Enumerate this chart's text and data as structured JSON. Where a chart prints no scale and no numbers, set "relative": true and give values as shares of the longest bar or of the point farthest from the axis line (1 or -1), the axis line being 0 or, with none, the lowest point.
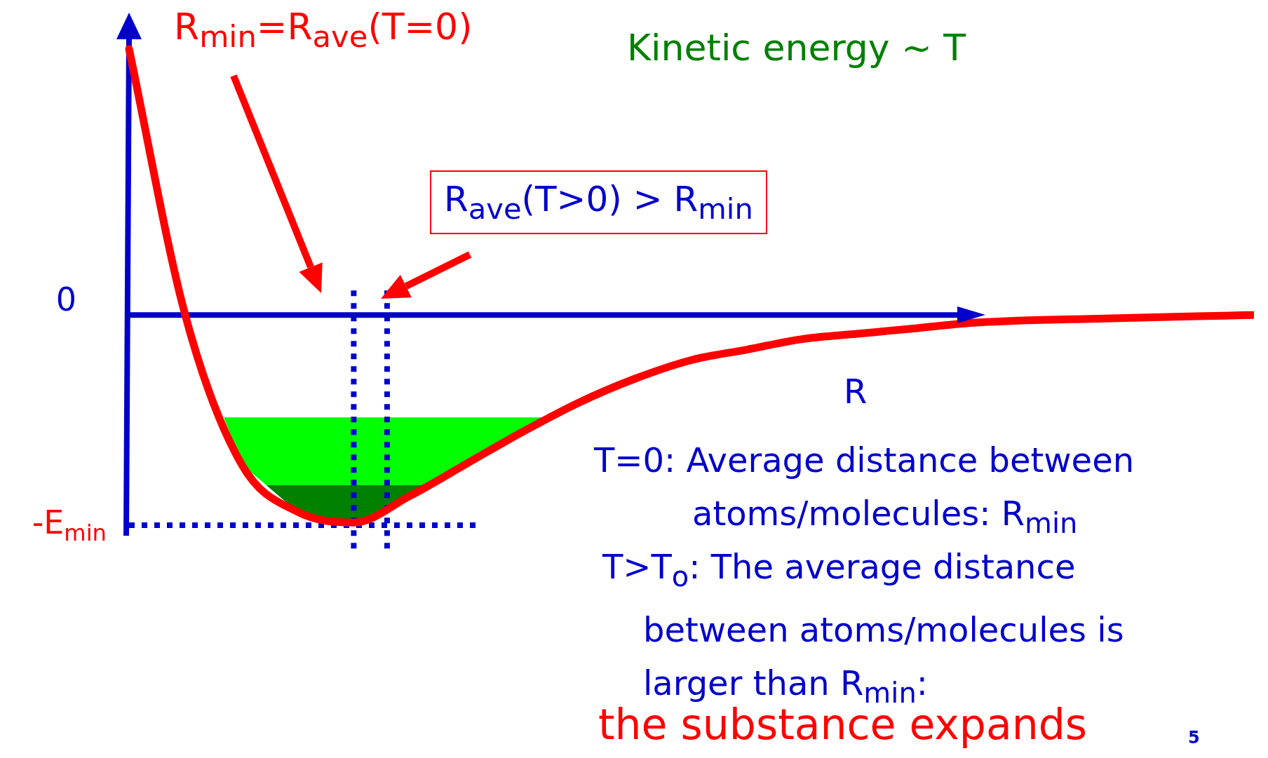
{
  "chart_data": {
    "type": "line",
    "relative": true,
    "xlabel": "R",
    "legend": false,
    "marker": "none",
    "categories": [
      null,
      null,
      null,
      null,
      null,
      null,
      null,
      null,
      null,
      null,
      null,
      null,
      null,
      null,
      null,
      null,
      null,
      null,
      null,
      null,
      null
    ],
    "series": [
      {
        "color": "#ff0000",
        "values": [
          1.0,
          0.0,
          -0.56,
          -0.74,
          -0.78,
          -0.68,
          -0.56,
          -0.44,
          -0.33,
          -0.24,
          -0.17,
          -0.13,
          -0.09,
          -0.07,
          -0.05,
          -0.03,
          -0.02,
          -0.015,
          -0.01,
          -0.005,
          0.0
        ]
      }
    ],
    "ref_lines": [
      {
        "axis": "y",
        "value": 0,
        "label": "0",
        "color": "#0000cc"
      },
      {
        "axis": "y",
        "value": -0.79,
        "label": "-E$_{min}$",
        "color": "#0000cc",
        "line_style": "dotted"
      }
    ],
    "bands": [
      {
        "axis": "y",
        "from": -0.64,
        "to": -0.385,
        "color": "#00ff00"
      },
      {
        "axis": "y",
        "from": -0.79,
        "to": -0.64,
        "color": "#008000"
      }
    ],
    "annotations": [
      "R$_{min}$=R$_{ave}$(T=0)",
      "Kinetic energy ~ T",
      "R$_{ave}$(T>0) > R$_{min}$",
      "T=0: Average distance between atoms/molecules: R$_{min}$",
      "T>T$_{o}$: The average distance between atoms/molecules is larger than R$_{min}$:",
      "the substance expands",
      "5"
    ]
  }
}
